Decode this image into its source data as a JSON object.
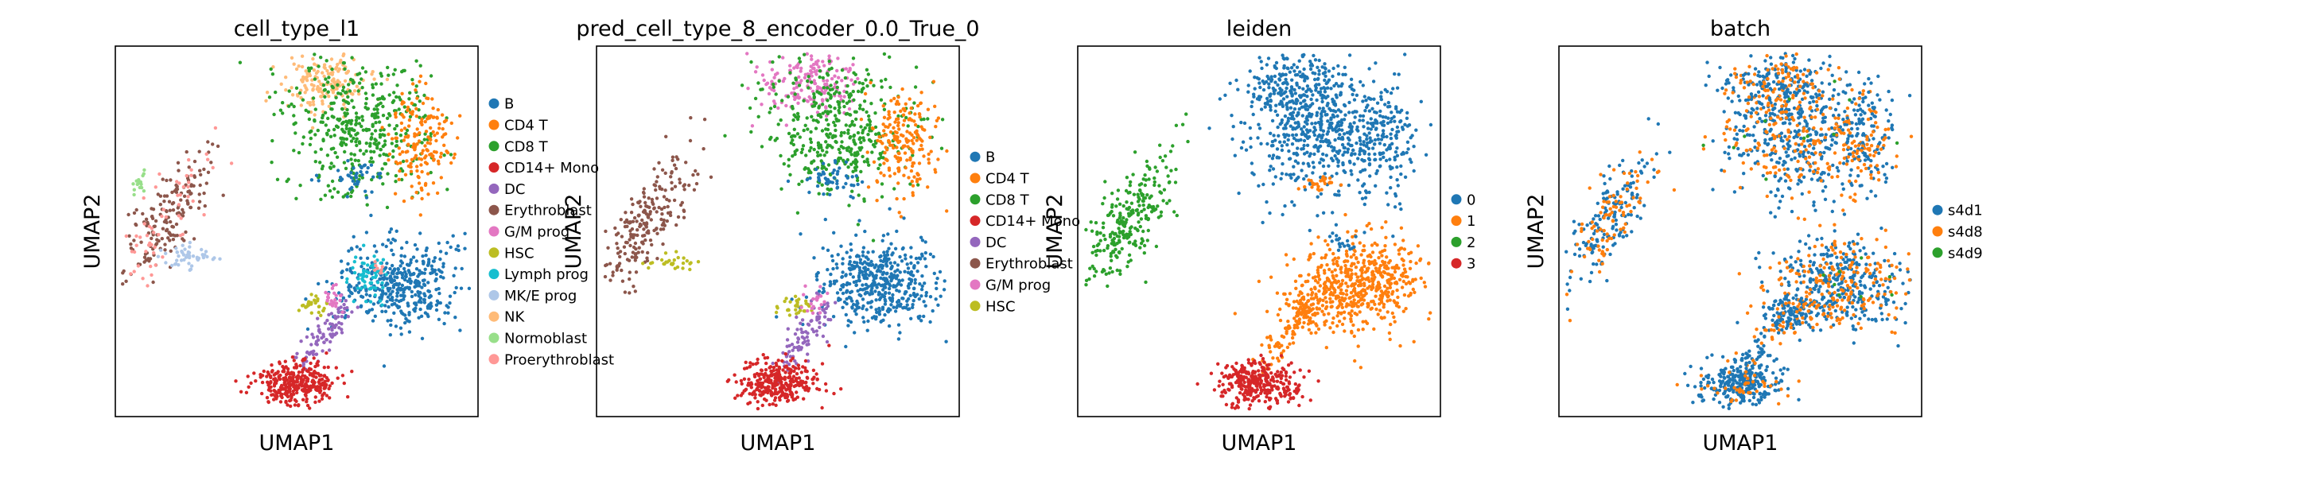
{
  "chart_data": [
    {
      "type": "scatter",
      "title": "cell_type_l1",
      "xlabel": "UMAP1",
      "ylabel": "UMAP2",
      "grid": false,
      "legend_placement": "right",
      "series": [
        {
          "name": "B",
          "color": "#1f77b4"
        },
        {
          "name": "CD4 T",
          "color": "#ff7f0e"
        },
        {
          "name": "CD8 T",
          "color": "#2ca02c"
        },
        {
          "name": "CD14+ Mono",
          "color": "#d62728"
        },
        {
          "name": "DC",
          "color": "#9467bd"
        },
        {
          "name": "Erythroblast",
          "color": "#8c564b"
        },
        {
          "name": "G/M prog",
          "color": "#e377c2"
        },
        {
          "name": "HSC",
          "color": "#bcbd22"
        },
        {
          "name": "Lymph prog",
          "color": "#17becf"
        },
        {
          "name": "MK/E prog",
          "color": "#aec7e8"
        },
        {
          "name": "NK",
          "color": "#ffbb78"
        },
        {
          "name": "Normoblast",
          "color": "#98df8a"
        },
        {
          "name": "Proerythroblast",
          "color": "#ff9896"
        }
      ]
    },
    {
      "type": "scatter",
      "title": "pred_cell_type_8_encoder_0.0_True_0",
      "xlabel": "UMAP1",
      "ylabel": "UMAP2",
      "grid": false,
      "legend_placement": "right",
      "series": [
        {
          "name": "B",
          "color": "#1f77b4"
        },
        {
          "name": "CD4 T",
          "color": "#ff7f0e"
        },
        {
          "name": "CD8 T",
          "color": "#2ca02c"
        },
        {
          "name": "CD14+ Mono",
          "color": "#d62728"
        },
        {
          "name": "DC",
          "color": "#9467bd"
        },
        {
          "name": "Erythroblast",
          "color": "#8c564b"
        },
        {
          "name": "G/M prog",
          "color": "#e377c2"
        },
        {
          "name": "HSC",
          "color": "#bcbd22"
        }
      ]
    },
    {
      "type": "scatter",
      "title": "leiden",
      "xlabel": "UMAP1",
      "ylabel": "UMAP2",
      "grid": false,
      "legend_placement": "right",
      "series": [
        {
          "name": "0",
          "color": "#1f77b4"
        },
        {
          "name": "1",
          "color": "#ff7f0e"
        },
        {
          "name": "2",
          "color": "#2ca02c"
        },
        {
          "name": "3",
          "color": "#d62728"
        }
      ]
    },
    {
      "type": "scatter",
      "title": "batch",
      "xlabel": "UMAP1",
      "ylabel": "UMAP2",
      "grid": false,
      "legend_placement": "right",
      "series": [
        {
          "name": "s4d1",
          "color": "#1f77b4"
        },
        {
          "name": "s4d8",
          "color": "#ff7f0e"
        },
        {
          "name": "s4d9",
          "color": "#2ca02c"
        }
      ]
    }
  ]
}
